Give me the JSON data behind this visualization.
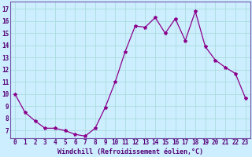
{
  "x": [
    0,
    1,
    2,
    3,
    4,
    5,
    6,
    7,
    8,
    9,
    10,
    11,
    12,
    13,
    14,
    15,
    16,
    17,
    18,
    19,
    20,
    21,
    22,
    23
  ],
  "y": [
    10.0,
    8.5,
    7.8,
    7.2,
    7.2,
    7.0,
    6.7,
    6.55,
    7.2,
    8.9,
    11.0,
    13.5,
    15.6,
    15.5,
    16.3,
    15.0,
    16.2,
    14.4,
    16.8,
    13.9,
    12.8,
    12.2,
    11.7,
    9.7
  ],
  "line_color": "#8b008b",
  "marker": "*",
  "marker_size": 3,
  "bg_color": "#cceeff",
  "grid_color": "#aadddd",
  "xlabel": "Windchill (Refroidissement éolien,°C)",
  "xlabel_fontsize": 6.0,
  "ylabel_vals": [
    7,
    8,
    9,
    10,
    11,
    12,
    13,
    14,
    15,
    16,
    17
  ],
  "xlim": [
    -0.5,
    23.5
  ],
  "ylim": [
    6.4,
    17.6
  ],
  "xtick_labels": [
    "0",
    "1",
    "2",
    "3",
    "4",
    "5",
    "6",
    "7",
    "8",
    "9",
    "10",
    "11",
    "12",
    "13",
    "14",
    "15",
    "16",
    "17",
    "18",
    "19",
    "20",
    "21",
    "22",
    "23"
  ],
  "tick_fontsize": 5.5,
  "spine_color": "#7755aa",
  "linewidth": 0.9
}
